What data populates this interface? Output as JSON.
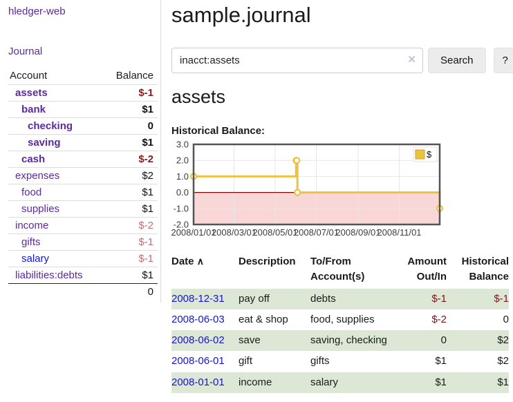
{
  "sidebar": {
    "brand": "hledger-web",
    "nav_journal": "Journal",
    "accounts_table": {
      "headers": [
        "Account",
        "Balance"
      ],
      "rows": [
        {
          "name": "assets",
          "indent": 1,
          "bold": true,
          "link_color": "purple",
          "balance": "$-1",
          "balance_style": "negative-strong"
        },
        {
          "name": "bank",
          "indent": 2,
          "bold": true,
          "link_color": "purple",
          "balance": "$1",
          "balance_style": "positive"
        },
        {
          "name": "checking",
          "indent": 3,
          "bold": true,
          "link_color": "purple",
          "balance": "0",
          "balance_style": "positive"
        },
        {
          "name": "saving",
          "indent": 3,
          "bold": true,
          "link_color": "purple",
          "balance": "$1",
          "balance_style": "positive"
        },
        {
          "name": "cash",
          "indent": 2,
          "bold": true,
          "link_color": "purple",
          "balance": "$-2",
          "balance_style": "negative-strong"
        },
        {
          "name": "expenses",
          "indent": 1,
          "bold": false,
          "link_color": "purple",
          "balance": "$2",
          "balance_style": "positive"
        },
        {
          "name": "food",
          "indent": 2,
          "bold": false,
          "link_color": "purple",
          "balance": "$1",
          "balance_style": "positive"
        },
        {
          "name": "supplies",
          "indent": 2,
          "bold": false,
          "link_color": "purple",
          "balance": "$1",
          "balance_style": "positive"
        },
        {
          "name": "income",
          "indent": 1,
          "bold": false,
          "link_color": "purple",
          "balance": "$-2",
          "balance_style": "negative-muted"
        },
        {
          "name": "gifts",
          "indent": 2,
          "bold": false,
          "link_color": "purple",
          "balance": "$-1",
          "balance_style": "negative-muted"
        },
        {
          "name": "salary",
          "indent": 2,
          "bold": false,
          "link_color": "blue",
          "balance": "$-1",
          "balance_style": "negative-muted"
        },
        {
          "name": "liabilities:debts",
          "indent": 1,
          "bold": false,
          "link_color": "purple",
          "balance": "$1",
          "balance_style": "positive"
        }
      ],
      "total": "0"
    }
  },
  "main": {
    "title": "sample.journal",
    "search": {
      "value": "inacct:assets",
      "clear_icon": "✕",
      "button_label": "Search",
      "help_label": "?"
    },
    "section_title": "assets",
    "chart_label": "Historical Balance:",
    "register": {
      "headers": [
        "Date",
        "Description",
        "To/From Account(s)",
        "Amount Out/In",
        "Historical Balance"
      ],
      "sort_indicator": "∧",
      "rows": [
        {
          "date": "2008-12-31",
          "description": "pay off",
          "accounts": "debts",
          "amount": "$-1",
          "amount_negative": true,
          "balance": "$-1",
          "balance_negative": true,
          "shaded": true
        },
        {
          "date": "2008-06-03",
          "description": "eat & shop",
          "accounts": "food, supplies",
          "amount": "$-2",
          "amount_negative": true,
          "balance": "0",
          "balance_negative": false,
          "shaded": false
        },
        {
          "date": "2008-06-02",
          "description": "save",
          "accounts": "saving, checking",
          "amount": "0",
          "amount_negative": false,
          "balance": "$2",
          "balance_negative": false,
          "shaded": true
        },
        {
          "date": "2008-06-01",
          "description": "gift",
          "accounts": "gifts",
          "amount": "$1",
          "amount_negative": false,
          "balance": "$2",
          "balance_negative": false,
          "shaded": false
        },
        {
          "date": "2008-01-01",
          "description": "income",
          "accounts": "salary",
          "amount": "$1",
          "amount_negative": false,
          "balance": "$1",
          "balance_negative": false,
          "shaded": true
        }
      ]
    }
  },
  "chart_data": {
    "type": "line",
    "step": true,
    "title": "Historical Balance",
    "xlabel": "",
    "ylabel": "",
    "series": [
      {
        "name": "$",
        "color": "#edc240",
        "points": [
          [
            "2008-01-01",
            1
          ],
          [
            "2008-06-01",
            2
          ],
          [
            "2008-06-02",
            2
          ],
          [
            "2008-06-03",
            0
          ],
          [
            "2008-12-31",
            -1
          ]
        ]
      }
    ],
    "xlim": [
      "2008-01-01",
      "2008-12-31"
    ],
    "ylim": [
      -2.0,
      3.0
    ],
    "y_ticks": [
      3.0,
      2.0,
      1.0,
      0.0,
      -1.0,
      -2.0
    ],
    "x_ticks": [
      "2008/01/01",
      "2008/03/01",
      "2008/05/01",
      "2008/07/01",
      "2008/09/01",
      "2008/11/01"
    ],
    "grid": true,
    "legend": {
      "label": "$",
      "position": "top-right"
    },
    "negative_region_color": "#f9d7d7",
    "zero_line_color": "#8b0000",
    "border_color": "#545454",
    "gridline_color": "#e6e6e6"
  },
  "colors": {
    "link_purple": "#5b2a9d",
    "link_blue": "#1414d4",
    "negative_strong": "#8b1a1a",
    "negative_muted": "#c07070",
    "register_negative": "#7c1418",
    "row_shade_green": "#dce8d5",
    "series_yellow": "#edc240",
    "negative_region_pink": "#f9d7d7",
    "zero_line_red": "#8b0000",
    "chart_border_gray": "#545454"
  }
}
